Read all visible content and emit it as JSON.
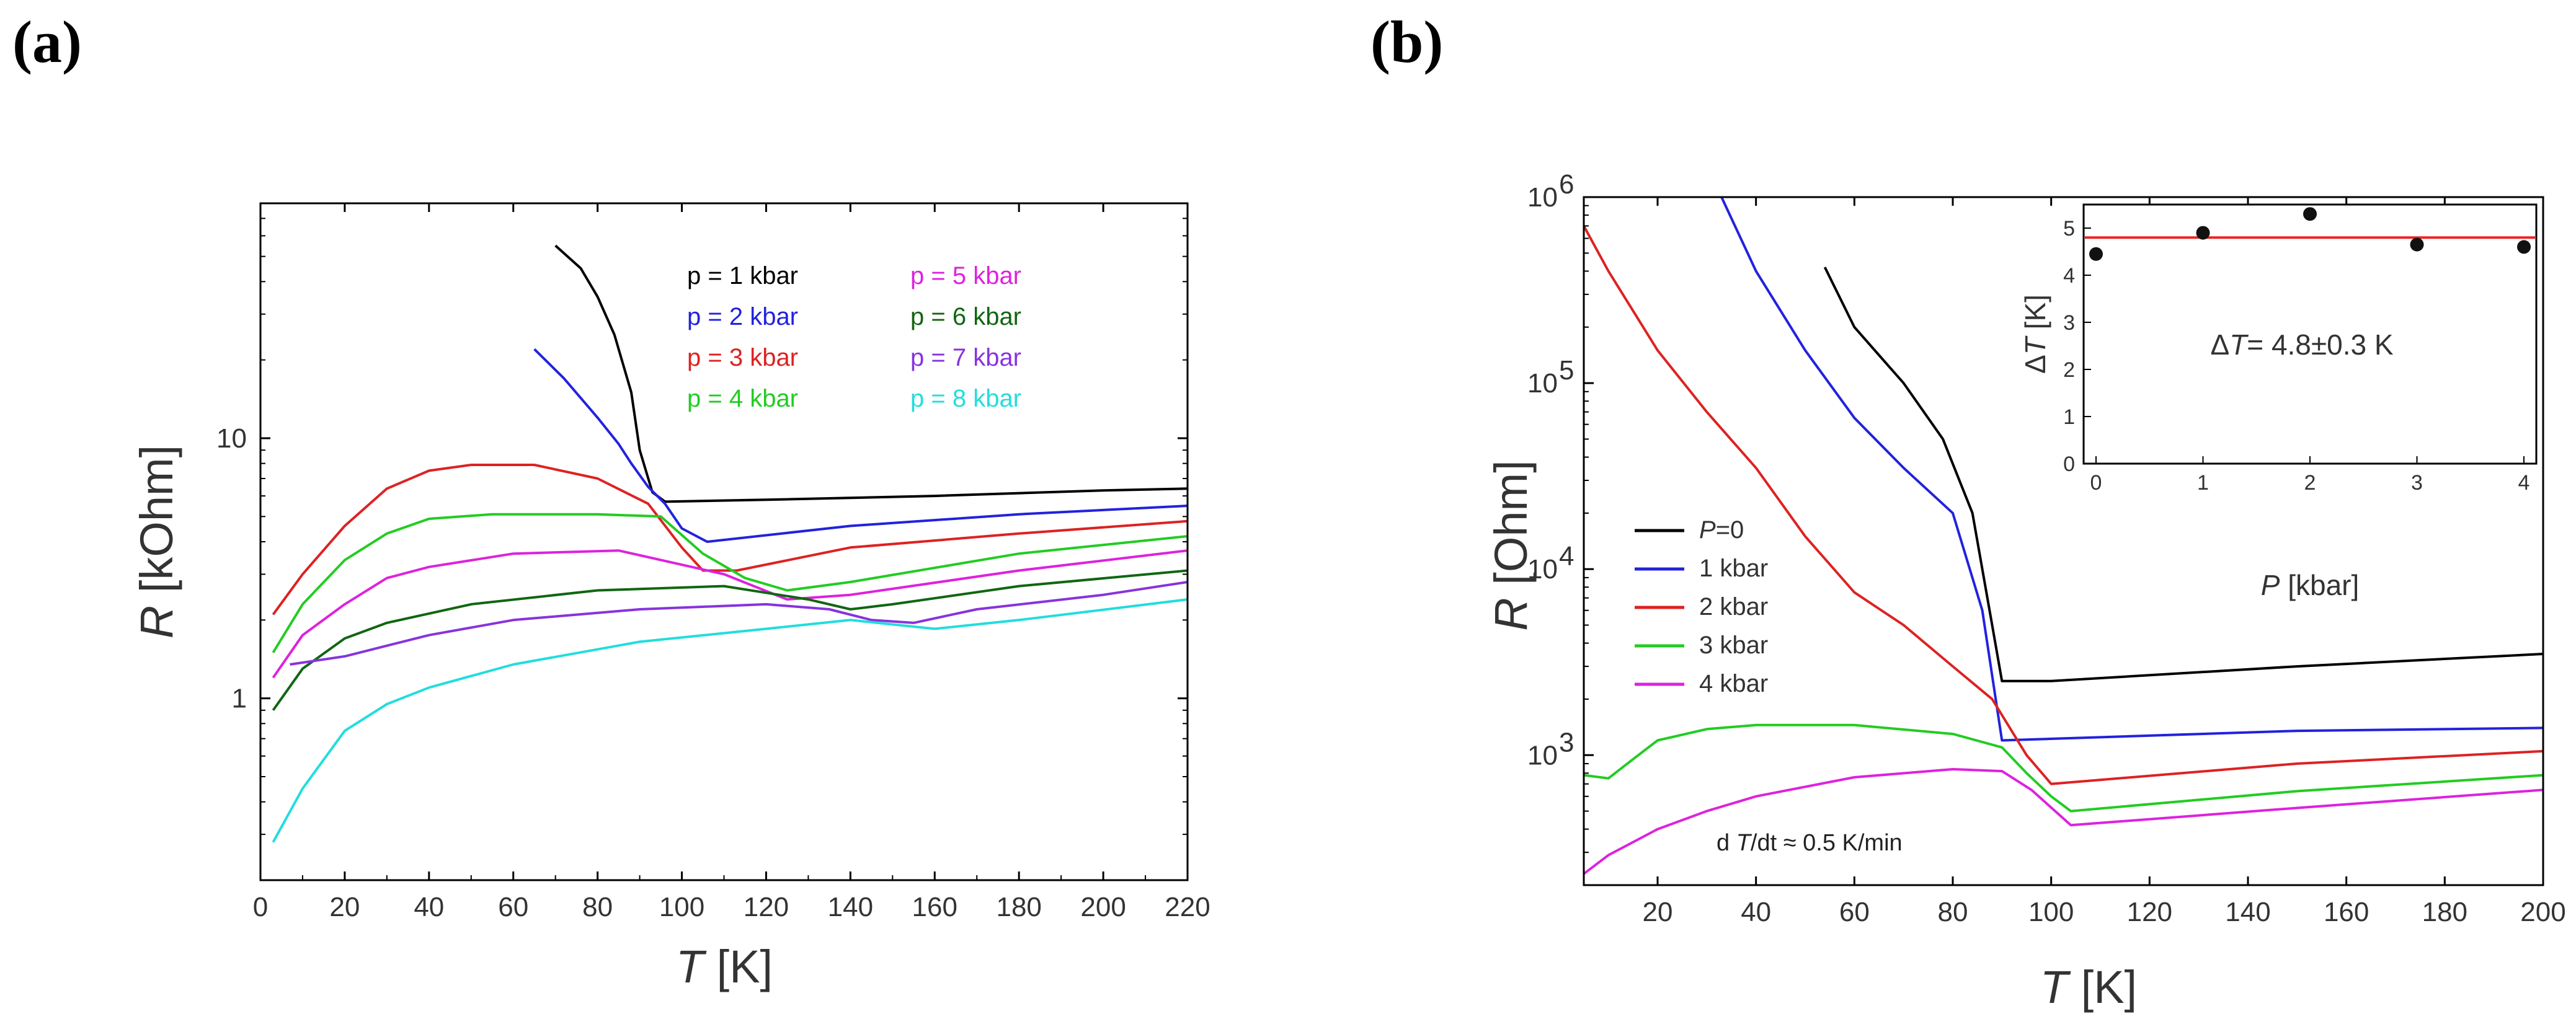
{
  "panel_labels": [
    "(a)",
    "(b)"
  ],
  "chart_data": [
    {
      "type": "line",
      "panel": "(a)",
      "xlabel_var": "T",
      "xlabel_unit": "[K]",
      "ylabel_var": "R",
      "ylabel_unit": "[kOhm]",
      "xlim": [
        0,
        220
      ],
      "ylim": [
        0.2,
        80
      ],
      "yscale": "log",
      "xticks": [
        "0",
        "20",
        "40",
        "60",
        "80",
        "100",
        "120",
        "140",
        "160",
        "180",
        "200",
        "220"
      ],
      "yticks": [
        "1",
        "10"
      ],
      "series": [
        {
          "name": "p = 1 kbar",
          "color": "#000000",
          "points": [
            [
              70,
              55
            ],
            [
              76,
              45
            ],
            [
              80,
              35
            ],
            [
              84,
              25
            ],
            [
              88,
              15
            ],
            [
              90,
              9
            ],
            [
              93,
              6.2
            ],
            [
              96,
              5.7
            ],
            [
              120,
              5.8
            ],
            [
              160,
              6.0
            ],
            [
              200,
              6.3
            ],
            [
              220,
              6.4
            ]
          ]
        },
        {
          "name": "p = 2 kbar",
          "color": "#2222dd",
          "points": [
            [
              65,
              22
            ],
            [
              72,
              17
            ],
            [
              80,
              12
            ],
            [
              85,
              9.5
            ],
            [
              88,
              8
            ],
            [
              92,
              6.5
            ],
            [
              96,
              5.6
            ],
            [
              100,
              4.5
            ],
            [
              106,
              4.0
            ],
            [
              140,
              4.6
            ],
            [
              180,
              5.1
            ],
            [
              220,
              5.5
            ]
          ]
        },
        {
          "name": "p = 3 kbar",
          "color": "#dd2222",
          "points": [
            [
              3,
              2.1
            ],
            [
              10,
              3.0
            ],
            [
              20,
              4.6
            ],
            [
              30,
              6.4
            ],
            [
              40,
              7.5
            ],
            [
              50,
              7.9
            ],
            [
              65,
              7.9
            ],
            [
              80,
              7.0
            ],
            [
              92,
              5.6
            ],
            [
              100,
              3.8
            ],
            [
              105,
              3.1
            ],
            [
              113,
              3.1
            ],
            [
              140,
              3.8
            ],
            [
              180,
              4.3
            ],
            [
              220,
              4.8
            ]
          ]
        },
        {
          "name": "p = 4 kbar",
          "color": "#22cc22",
          "points": [
            [
              3,
              1.5
            ],
            [
              10,
              2.3
            ],
            [
              20,
              3.4
            ],
            [
              30,
              4.3
            ],
            [
              40,
              4.9
            ],
            [
              55,
              5.1
            ],
            [
              80,
              5.1
            ],
            [
              95,
              5.0
            ],
            [
              105,
              3.6
            ],
            [
              115,
              2.9
            ],
            [
              125,
              2.6
            ],
            [
              140,
              2.8
            ],
            [
              180,
              3.6
            ],
            [
              220,
              4.2
            ]
          ]
        },
        {
          "name": "p = 5 kbar",
          "color": "#dd22dd",
          "points": [
            [
              3,
              1.2
            ],
            [
              10,
              1.75
            ],
            [
              20,
              2.3
            ],
            [
              30,
              2.9
            ],
            [
              40,
              3.2
            ],
            [
              60,
              3.6
            ],
            [
              85,
              3.7
            ],
            [
              110,
              3.0
            ],
            [
              125,
              2.4
            ],
            [
              140,
              2.5
            ],
            [
              180,
              3.1
            ],
            [
              220,
              3.7
            ]
          ]
        },
        {
          "name": "p = 6 kbar",
          "color": "#116611",
          "points": [
            [
              3,
              0.9
            ],
            [
              10,
              1.3
            ],
            [
              20,
              1.7
            ],
            [
              30,
              1.95
            ],
            [
              50,
              2.3
            ],
            [
              80,
              2.6
            ],
            [
              110,
              2.7
            ],
            [
              130,
              2.4
            ],
            [
              140,
              2.2
            ],
            [
              150,
              2.3
            ],
            [
              180,
              2.7
            ],
            [
              220,
              3.1
            ]
          ]
        },
        {
          "name": "p = 7 kbar",
          "color": "#8833dd",
          "points": [
            [
              7,
              1.35
            ],
            [
              20,
              1.45
            ],
            [
              40,
              1.75
            ],
            [
              60,
              2.0
            ],
            [
              90,
              2.2
            ],
            [
              120,
              2.3
            ],
            [
              135,
              2.2
            ],
            [
              145,
              2.0
            ],
            [
              155,
              1.95
            ],
            [
              170,
              2.2
            ],
            [
              200,
              2.5
            ],
            [
              220,
              2.8
            ]
          ]
        },
        {
          "name": "p = 8 kbar",
          "color": "#22dddd",
          "points": [
            [
              3,
              0.28
            ],
            [
              10,
              0.45
            ],
            [
              20,
              0.75
            ],
            [
              30,
              0.95
            ],
            [
              40,
              1.1
            ],
            [
              60,
              1.35
            ],
            [
              90,
              1.65
            ],
            [
              120,
              1.85
            ],
            [
              140,
              2.0
            ],
            [
              160,
              1.85
            ],
            [
              180,
              2.0
            ],
            [
              220,
              2.4
            ]
          ]
        }
      ]
    },
    {
      "type": "line",
      "panel": "(b)",
      "xlabel_var": "T",
      "xlabel_unit": "[K]",
      "ylabel_var": "R",
      "ylabel_unit": "[Ohm]",
      "xlim": [
        5,
        200
      ],
      "ylim": [
        200,
        1000000
      ],
      "yscale": "log",
      "xticks": [
        "20",
        "40",
        "60",
        "80",
        "100",
        "120",
        "140",
        "160",
        "180",
        "200"
      ],
      "yticks_base": [
        "10",
        "10",
        "10",
        "10"
      ],
      "yticks_exp": [
        "3",
        "4",
        "5",
        "6"
      ],
      "annotation_prefix": "d",
      "annotation_var": "T",
      "annotation_rest": "/dt ≈ 0.5  K/min",
      "series": [
        {
          "name": "P=0",
          "legend_var": "P",
          "legend_rest": "=0",
          "color": "#000000",
          "points": [
            [
              54,
              420000
            ],
            [
              60,
              200000
            ],
            [
              70,
              100000
            ],
            [
              78,
              50000
            ],
            [
              84,
              20000
            ],
            [
              88,
              5000
            ],
            [
              90,
              2500
            ],
            [
              100,
              2500
            ],
            [
              150,
              3000
            ],
            [
              200,
              3500
            ]
          ]
        },
        {
          "name": "1 kbar",
          "color": "#2222dd",
          "points": [
            [
              33,
              1000000
            ],
            [
              40,
              400000
            ],
            [
              50,
              150000
            ],
            [
              60,
              65000
            ],
            [
              70,
              35000
            ],
            [
              80,
              20000
            ],
            [
              86,
              6000
            ],
            [
              90,
              1200
            ],
            [
              150,
              1350
            ],
            [
              200,
              1400
            ]
          ]
        },
        {
          "name": "2 kbar",
          "color": "#dd2222",
          "points": [
            [
              5,
              700000
            ],
            [
              10,
              400000
            ],
            [
              20,
              150000
            ],
            [
              30,
              70000
            ],
            [
              40,
              35000
            ],
            [
              50,
              15000
            ],
            [
              60,
              7500
            ],
            [
              70,
              5000
            ],
            [
              80,
              3000
            ],
            [
              88,
              2000
            ],
            [
              95,
              1000
            ],
            [
              100,
              700
            ],
            [
              150,
              900
            ],
            [
              200,
              1050
            ]
          ]
        },
        {
          "name": "3 kbar",
          "color": "#22cc22",
          "points": [
            [
              5,
              780
            ],
            [
              10,
              750
            ],
            [
              15,
              950
            ],
            [
              20,
              1200
            ],
            [
              30,
              1380
            ],
            [
              40,
              1450
            ],
            [
              60,
              1450
            ],
            [
              80,
              1300
            ],
            [
              90,
              1100
            ],
            [
              95,
              800
            ],
            [
              100,
              600
            ],
            [
              104,
              500
            ],
            [
              150,
              640
            ],
            [
              200,
              780
            ]
          ]
        },
        {
          "name": "4 kbar",
          "color": "#dd22dd",
          "points": [
            [
              5,
              230
            ],
            [
              10,
              290
            ],
            [
              20,
              400
            ],
            [
              30,
              500
            ],
            [
              40,
              600
            ],
            [
              60,
              760
            ],
            [
              80,
              840
            ],
            [
              90,
              820
            ],
            [
              96,
              650
            ],
            [
              104,
              420
            ],
            [
              150,
              520
            ],
            [
              200,
              650
            ]
          ]
        }
      ],
      "inset": {
        "type": "scatter",
        "xlabel_var": "P",
        "xlabel_unit": "[kbar]",
        "ylabel_prefix": "Δ",
        "ylabel_var": "T",
        "ylabel_unit": "[K]",
        "xlim": [
          0,
          4
        ],
        "ylim": [
          0,
          5.5
        ],
        "xticks": [
          "0",
          "1",
          "2",
          "3",
          "4"
        ],
        "yticks": [
          "0",
          "1",
          "2",
          "3",
          "4",
          "5"
        ],
        "x": [
          0,
          1,
          2,
          3,
          4
        ],
        "y": [
          4.45,
          4.9,
          5.3,
          4.65,
          4.6
        ],
        "fit_value": 4.8,
        "fit_color": "#ee2222",
        "annotation_prefix": "Δ",
        "annotation_var": "T",
        "annotation_rest": "= 4.8±0.3 K"
      }
    }
  ]
}
